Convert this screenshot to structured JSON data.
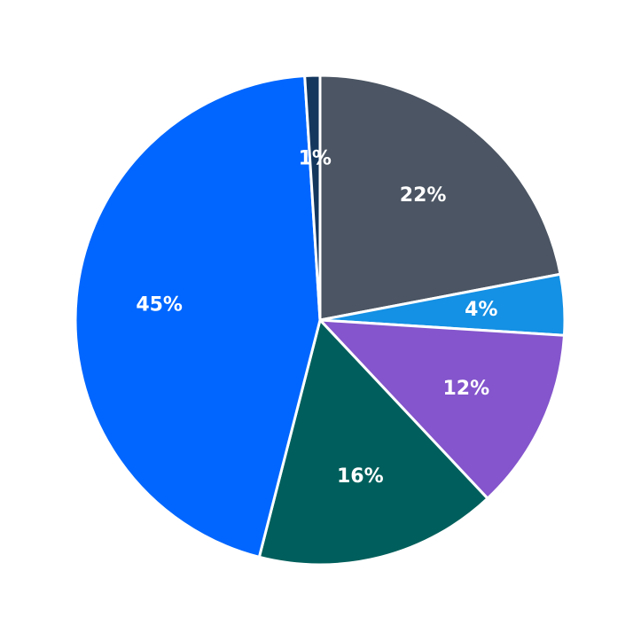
{
  "chart_data": {
    "type": "pie",
    "title": "",
    "start_angle_deg": 90,
    "direction": "clockwise",
    "legend": "none",
    "slices": [
      {
        "value": 22,
        "label": "22%",
        "color": "#4b5563"
      },
      {
        "value": 4,
        "label": "4%",
        "color": "#1490e4"
      },
      {
        "value": 12,
        "label": "12%",
        "color": "#8455cc"
      },
      {
        "value": 16,
        "label": "16%",
        "color": "#005f5c"
      },
      {
        "value": 45,
        "label": "45%",
        "color": "#0066ff"
      },
      {
        "value": 1,
        "label": "1%",
        "color": "#14375e"
      }
    ]
  }
}
